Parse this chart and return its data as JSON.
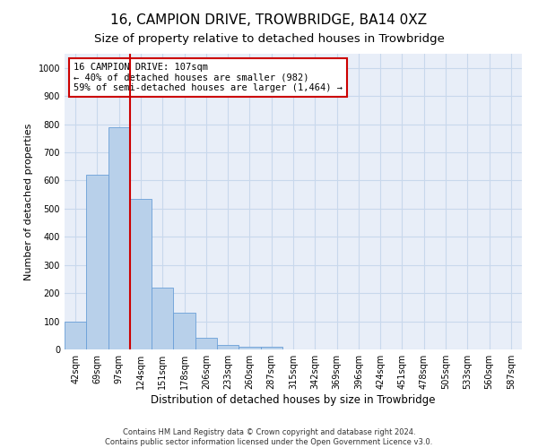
{
  "title": "16, CAMPION DRIVE, TROWBRIDGE, BA14 0XZ",
  "subtitle": "Size of property relative to detached houses in Trowbridge",
  "xlabel": "Distribution of detached houses by size in Trowbridge",
  "ylabel": "Number of detached properties",
  "categories": [
    "42sqm",
    "69sqm",
    "97sqm",
    "124sqm",
    "151sqm",
    "178sqm",
    "206sqm",
    "233sqm",
    "260sqm",
    "287sqm",
    "315sqm",
    "342sqm",
    "369sqm",
    "396sqm",
    "424sqm",
    "451sqm",
    "478sqm",
    "505sqm",
    "533sqm",
    "560sqm",
    "587sqm"
  ],
  "bar_values": [
    100,
    620,
    790,
    535,
    220,
    130,
    40,
    15,
    10,
    10,
    0,
    0,
    0,
    0,
    0,
    0,
    0,
    0,
    0,
    0,
    0
  ],
  "bar_color": "#b8d0ea",
  "bar_edge_color": "#6a9fd8",
  "grid_color": "#c8d8ec",
  "background_color": "#e8eef8",
  "property_line_color": "#cc0000",
  "annotation_text": "16 CAMPION DRIVE: 107sqm\n← 40% of detached houses are smaller (982)\n59% of semi-detached houses are larger (1,464) →",
  "annotation_box_color": "#ffffff",
  "annotation_box_edge_color": "#cc0000",
  "ylim": [
    0,
    1050
  ],
  "yticks": [
    0,
    100,
    200,
    300,
    400,
    500,
    600,
    700,
    800,
    900,
    1000
  ],
  "footer_line1": "Contains HM Land Registry data © Crown copyright and database right 2024.",
  "footer_line2": "Contains public sector information licensed under the Open Government Licence v3.0.",
  "title_fontsize": 11,
  "subtitle_fontsize": 9.5,
  "xlabel_fontsize": 8.5,
  "ylabel_fontsize": 8,
  "tick_fontsize": 7,
  "annotation_fontsize": 7.5,
  "footer_fontsize": 6
}
